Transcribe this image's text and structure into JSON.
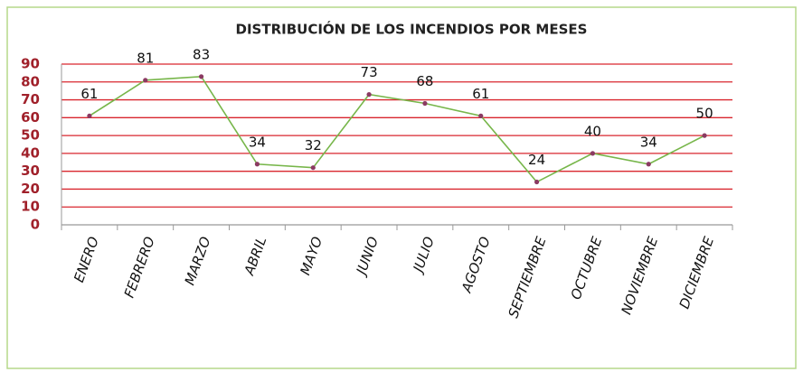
{
  "chart_data": {
    "type": "line",
    "title": "DISTRIBUCIÓN DE LOS INCENDIOS POR MESES",
    "categories": [
      "ENERO",
      "FEBRERO",
      "MARZO",
      "ABRIL",
      "MAYO",
      "JUNIO",
      "JULIO",
      "AGOSTO",
      "SEPTIEMBRE",
      "OCTUBRE",
      "NOVIEMBRE",
      "DICIEMBRE"
    ],
    "values": [
      61,
      81,
      83,
      34,
      32,
      73,
      68,
      61,
      24,
      40,
      34,
      50
    ],
    "color": "#77b64a",
    "marker_color": "#8b3a62",
    "grid_color": "#d9262e",
    "ylim": [
      0,
      90
    ],
    "yticks": [
      0,
      10,
      20,
      30,
      40,
      50,
      60,
      70,
      80,
      90
    ],
    "grid": true
  }
}
